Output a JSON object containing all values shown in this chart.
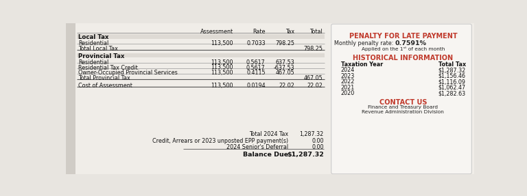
{
  "bg_color": "#e8e5e0",
  "left_panel_bg": "#f0ede8",
  "right_panel_bg": "#f0ede8",
  "right_box_bg": "#f7f5f2",
  "sidebar_bg": "#d0ccc6",
  "header_cols": [
    "Assessment",
    "Rate",
    "Tax",
    "Total"
  ],
  "local_tax": {
    "section_label": "Local Tax",
    "rows": [
      {
        "label": "Residential",
        "assessment": "113,500",
        "rate": "0.7033",
        "tax": "798.25",
        "total": ""
      },
      {
        "label": "Total Local Tax",
        "assessment": "",
        "rate": "",
        "tax": "",
        "total": "798.25"
      }
    ]
  },
  "provincial_tax": {
    "section_label": "Provincial Tax",
    "rows": [
      {
        "label": "Residential",
        "assessment": "113,500",
        "rate": "0.5617",
        "tax": "637.53",
        "total": ""
      },
      {
        "label": "Residential Tax Credit",
        "assessment": "113,500",
        "rate": "0.5617",
        "tax": "-637.53",
        "total": ""
      },
      {
        "label": "Owner-Occupied Provincial Services",
        "assessment": "113,500",
        "rate": "0.4115",
        "tax": "467.05",
        "total": ""
      },
      {
        "label": "Total Provincial Tax",
        "assessment": "",
        "rate": "",
        "tax": "",
        "total": "467.05"
      }
    ]
  },
  "cost_of_assessment": {
    "label": "Cost of Assessment",
    "assessment": "113,500",
    "rate": "0.0194",
    "tax": "22.02",
    "total": "22.02"
  },
  "summary": {
    "total_2024_tax_label": "Total 2024 Tax",
    "total_2024_tax_value": "1,287.32",
    "credit_label": "Credit, Arrears or 2023 unposted EPP payment(s)",
    "credit_value": "0.00",
    "deferral_label": "2024 Senior's Deferral",
    "deferral_value": "0.00",
    "balance_due_label": "Balance Due",
    "balance_due_value": "$1,287.32"
  },
  "penalty": {
    "title": "PENALTY FOR LATE PAYMENT",
    "rate_label": "Monthly penalty rate:",
    "rate_value": "0.7591%",
    "applied_text": "Applied on the 1ˢᵗ of each month"
  },
  "historical": {
    "title": "HISTORICAL INFORMATION",
    "col1": "Taxation Year",
    "col2": "Total Tax",
    "rows": [
      {
        "year": "2024",
        "tax": "$1,287.32"
      },
      {
        "year": "2023",
        "tax": "$1,156.46"
      },
      {
        "year": "2022",
        "tax": "$1,116.09"
      },
      {
        "year": "2021",
        "tax": "$1,062.47"
      },
      {
        "year": "2020",
        "tax": "$1,282.63"
      }
    ]
  },
  "contact": {
    "title": "CONTACT US",
    "line1": "Finance and Treasury Board",
    "line2": "Revenue Administration Division"
  },
  "red_color": "#c0392b",
  "text_color": "#222222",
  "section_bg": "#dedad4",
  "divider_color": "#999999"
}
